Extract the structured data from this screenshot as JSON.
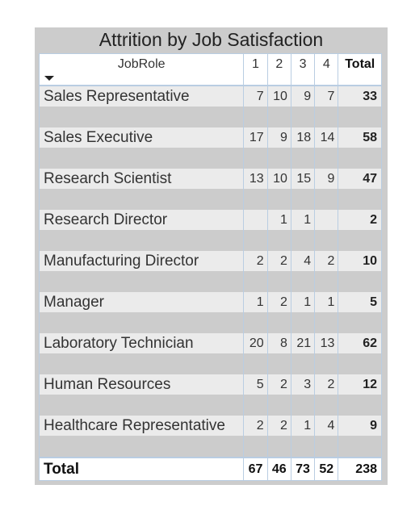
{
  "title": "Attrition by Job Satisfaction",
  "header": {
    "role": "JobRole",
    "cols": [
      "1",
      "2",
      "3",
      "4"
    ],
    "total": "Total"
  },
  "rows": [
    {
      "role": "Sales Representative",
      "v": [
        "7",
        "10",
        "9",
        "7"
      ],
      "total": "33"
    },
    {
      "role": "Sales Executive",
      "v": [
        "17",
        "9",
        "18",
        "14"
      ],
      "total": "58"
    },
    {
      "role": "Research Scientist",
      "v": [
        "13",
        "10",
        "15",
        "9"
      ],
      "total": "47"
    },
    {
      "role": "Research Director",
      "v": [
        "",
        "1",
        "1",
        ""
      ],
      "total": "2"
    },
    {
      "role": "Manufacturing Director",
      "v": [
        "2",
        "2",
        "4",
        "2"
      ],
      "total": "10"
    },
    {
      "role": "Manager",
      "v": [
        "1",
        "2",
        "1",
        "1"
      ],
      "total": "5"
    },
    {
      "role": "Laboratory Technician",
      "v": [
        "20",
        "8",
        "21",
        "13"
      ],
      "total": "62"
    },
    {
      "role": "Human Resources",
      "v": [
        "5",
        "2",
        "3",
        "2"
      ],
      "total": "12"
    },
    {
      "role": "Healthcare Representative",
      "v": [
        "2",
        "2",
        "1",
        "4"
      ],
      "total": "9"
    }
  ],
  "totals": {
    "label": "Total",
    "v": [
      "67",
      "46",
      "73",
      "52"
    ],
    "total": "238"
  },
  "icons": {
    "sort": "sort-descending-icon"
  }
}
